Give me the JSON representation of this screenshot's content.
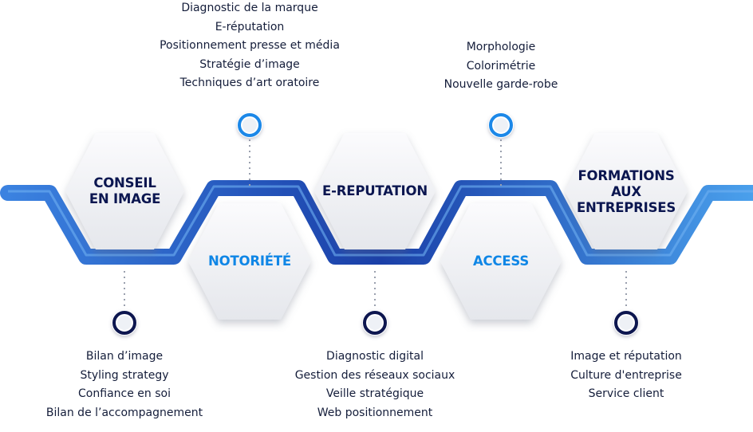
{
  "colors": {
    "dark_blue": "#0b1650",
    "light_blue": "#0f86e6",
    "band": "#1a3fa8"
  },
  "hexagons": [
    {
      "id": "conseil-en-image",
      "title": "CONSEIL\nEN IMAGE",
      "tone": "dark"
    },
    {
      "id": "notoriete",
      "title": "NOTORIÉTÉ",
      "tone": "light"
    },
    {
      "id": "e-reputation",
      "title": "E-REPUTATION",
      "tone": "dark"
    },
    {
      "id": "access",
      "title": "ACCESS",
      "tone": "light"
    },
    {
      "id": "formations",
      "title": "FORMATIONS\nAUX\nENTREPRISES",
      "tone": "dark"
    }
  ],
  "lists": {
    "conseil": [
      "Bilan d’image",
      "Styling strategy",
      "Confiance en soi",
      "Bilan de l’accompagnement"
    ],
    "notoriete": [
      "Diagnostic de la marque",
      "E-réputation",
      "Positionnement presse et média",
      "Stratégie d’image",
      "Techniques d’art oratoire"
    ],
    "ereputation": [
      "Diagnostic digital",
      "Gestion des réseaux sociaux",
      "Veille stratégique",
      "Web positionnement"
    ],
    "access": [
      "Morphologie",
      "Colorimétrie",
      "Nouvelle garde-robe"
    ],
    "formations": [
      "Image et réputation",
      "Culture d'entreprise",
      "Service client"
    ]
  }
}
